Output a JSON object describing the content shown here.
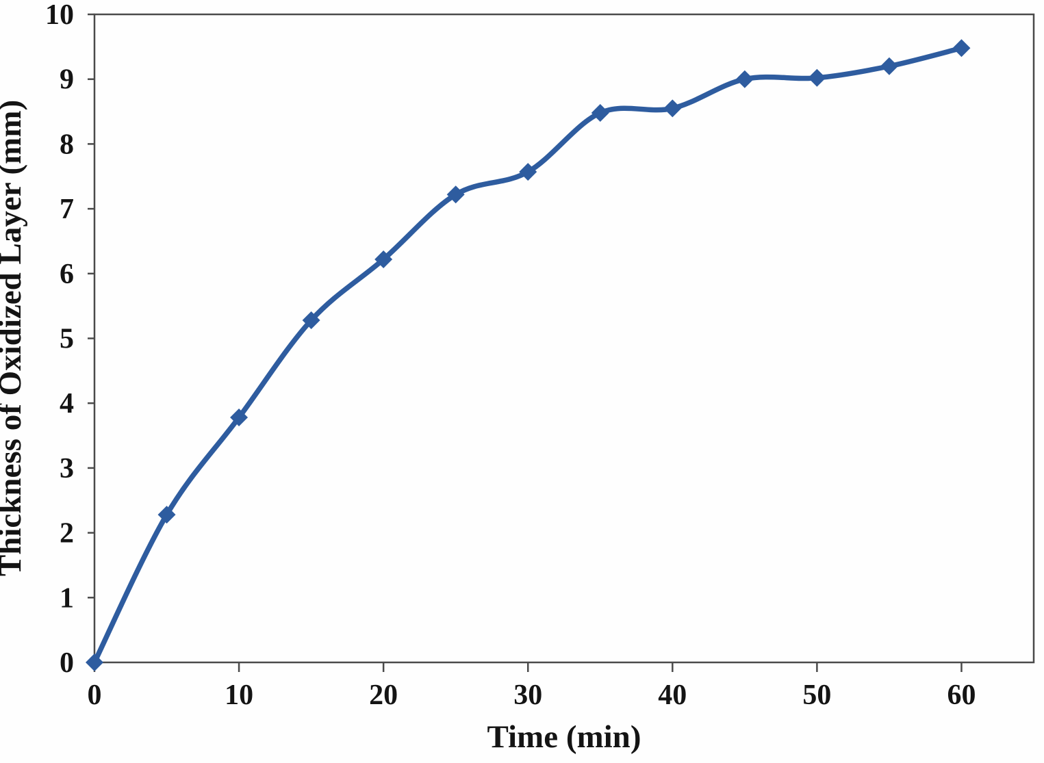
{
  "chart_data": {
    "type": "line",
    "title": "",
    "xlabel": "Time (min)",
    "ylabel": "Thickness of Oxidized Layer (mm)",
    "x": [
      0,
      5,
      10,
      15,
      20,
      25,
      30,
      35,
      40,
      45,
      50,
      55,
      60
    ],
    "series": [
      {
        "name": "Thickness of Oxidized Layer",
        "values": [
          0,
          2.28,
          3.78,
          5.28,
          6.22,
          7.22,
          7.57,
          8.48,
          8.55,
          9.0,
          9.02,
          9.2,
          9.48
        ]
      }
    ],
    "xlim": [
      0,
      65
    ],
    "ylim": [
      0,
      10
    ],
    "x_ticks": [
      0,
      10,
      20,
      30,
      40,
      50,
      60
    ],
    "y_ticks": [
      0,
      1,
      2,
      3,
      4,
      5,
      6,
      7,
      8,
      9,
      10
    ],
    "grid": false,
    "legend": false,
    "smooth": true,
    "marker": "diamond",
    "line_color": "#2e5c9f",
    "marker_color": "#2e5c9f",
    "axis_color": "#4a4a4a",
    "text_color": "#141414"
  }
}
